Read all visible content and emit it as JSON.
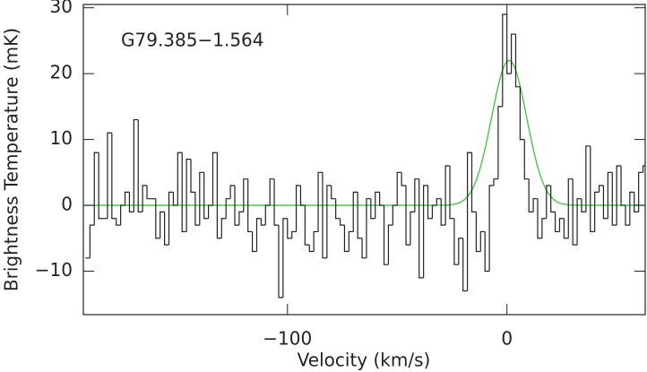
{
  "chart_data": {
    "type": "step",
    "title": "G79.385−1.564",
    "xlabel": "Velocity (km/s)",
    "ylabel": "Brightness Temperature (mK)",
    "xlim": [
      -193,
      63
    ],
    "ylim": [
      -16.6,
      30.5
    ],
    "xticks": [
      {
        "value": -100,
        "label": "−100"
      },
      0
    ],
    "yticks": [
      {
        "value": -10,
        "label": "−10"
      },
      0,
      10,
      20,
      30
    ],
    "color": "#222222",
    "x": [
      -191,
      -189,
      -187,
      -185,
      -183,
      -181,
      -179,
      -177,
      -175,
      -173,
      -171,
      -169,
      -167,
      -165,
      -163,
      -161,
      -159,
      -157,
      -155,
      -153,
      -151,
      -149,
      -147,
      -145,
      -143,
      -141,
      -139,
      -137,
      -135,
      -133,
      -131,
      -129,
      -127,
      -125,
      -123,
      -121,
      -119,
      -117,
      -115,
      -113,
      -111,
      -109,
      -107,
      -105,
      -103,
      -101,
      -99,
      -97,
      -95,
      -93,
      -91,
      -89,
      -87,
      -85,
      -83,
      -81,
      -79,
      -77,
      -75,
      -73,
      -71,
      -69,
      -67,
      -65,
      -63,
      -61,
      -59,
      -57,
      -55,
      -53,
      -51,
      -49,
      -47,
      -45,
      -43,
      -41,
      -39,
      -37,
      -35,
      -33,
      -31,
      -29,
      -27,
      -25,
      -23,
      -21,
      -19,
      -17,
      -15,
      -13,
      -11,
      -9,
      -7,
      -5,
      -3,
      -1,
      1,
      3,
      5,
      7,
      9,
      11,
      13,
      15,
      17,
      19,
      21,
      23,
      25,
      27,
      29,
      31,
      33,
      35,
      37,
      39,
      41,
      43,
      45,
      47,
      49,
      51,
      53,
      55,
      57,
      59,
      61,
      63
    ],
    "values": [
      -8,
      -3,
      8,
      -2,
      -2,
      11,
      -2,
      -3,
      0,
      2,
      -1,
      13,
      -1,
      3,
      1,
      1,
      -5,
      -1,
      -6,
      2,
      0,
      8,
      -4,
      7,
      2,
      -3,
      5,
      -2,
      0,
      8,
      -5,
      -2,
      1,
      3,
      -3,
      -1,
      4,
      -4,
      -7,
      -2,
      -3,
      0,
      4,
      -3,
      -14,
      -2,
      -5,
      -4,
      3,
      0,
      -6,
      -7,
      -4,
      5,
      -8,
      3,
      1,
      -2,
      -3,
      -7,
      -4,
      2,
      -5,
      -8,
      1,
      -2,
      2,
      0,
      -9,
      -3,
      0,
      5,
      3,
      -6,
      -1,
      4,
      -11,
      3,
      -2,
      0,
      1,
      -3,
      6,
      -2,
      -9,
      -5,
      -13,
      8,
      -1,
      -7,
      -4,
      -10,
      3,
      4,
      15,
      29,
      20,
      26,
      18,
      10,
      4,
      -1,
      1,
      -5,
      -2,
      3,
      -1,
      -4,
      -2,
      -5,
      4,
      -6,
      1,
      -1,
      9,
      -4,
      2,
      3,
      -2,
      5,
      -3,
      6,
      0,
      -3,
      2,
      -1,
      5,
      6
    ],
    "fit": {
      "amplitude": 22,
      "center": 1,
      "sigma": 8,
      "color": "#33cc33"
    }
  }
}
